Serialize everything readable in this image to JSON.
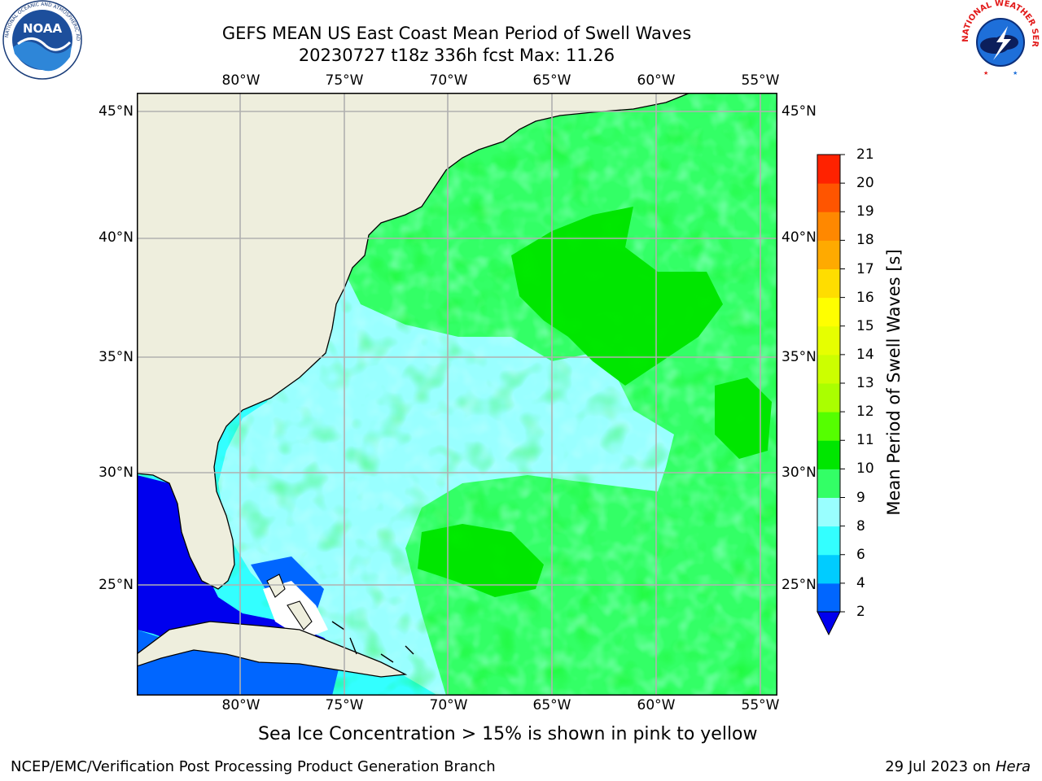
{
  "title": {
    "line1": "GEFS MEAN US East Coast Mean Period of Swell Waves",
    "line2": "20230727 t18z 336h fcst   Max: 11.26"
  },
  "logos": {
    "noaa_text": "NOAA",
    "noaa_ring_text": "NATIONAL OCEANIC AND ATMOSPHERIC ADMINISTRATION · U.S. DEPARTMENT OF COMMERCE",
    "nws_ring_text": "NATIONAL WEATHER SERVICE"
  },
  "map": {
    "lon_labels": [
      "80°W",
      "75°W",
      "70°W",
      "65°W",
      "60°W",
      "55°W"
    ],
    "lat_labels": [
      "45°N",
      "40°N",
      "35°N",
      "30°N",
      "25°N"
    ],
    "extent": {
      "lon_min": -85,
      "lon_max": -54.2,
      "lat_min": 20.5,
      "lat_max": 45.8
    },
    "colors": {
      "land": "#eeeedd",
      "grid": "#b0b0b0",
      "coast": "#000000"
    }
  },
  "colorbar": {
    "label": "Mean Period of Swell Waves [s]",
    "ticks": [
      "2",
      "4",
      "6",
      "8",
      "9",
      "10",
      "11",
      "12",
      "13",
      "14",
      "15",
      "16",
      "17",
      "18",
      "19",
      "20",
      "21"
    ],
    "colors": [
      "#0066ff",
      "#00ccff",
      "#33ffff",
      "#99ffff",
      "#33ff66",
      "#00e600",
      "#55ff00",
      "#aaff00",
      "#ccff00",
      "#e6ff00",
      "#ffff00",
      "#ffdd00",
      "#ffaa00",
      "#ff8800",
      "#ff5500",
      "#ff2200"
    ],
    "under_color": "#0000ee"
  },
  "caption": "Sea Ice Concentration > 15% is shown in pink to yellow",
  "footer": {
    "left": "NCEP/EMC/Verification Post Processing Product Generation Branch",
    "date": "29 Jul 2023 on ",
    "machine": "Hera"
  }
}
